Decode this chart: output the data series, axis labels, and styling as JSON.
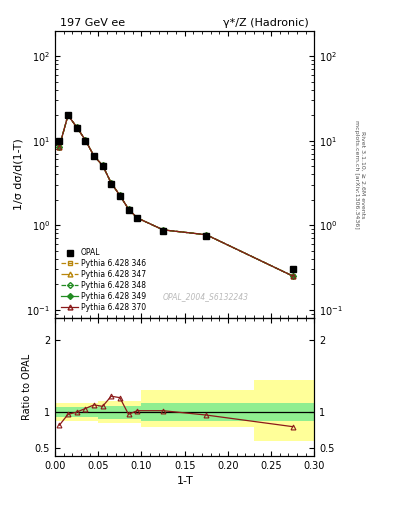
{
  "title_left": "197 GeV ee",
  "title_right": "γ*/Z (Hadronic)",
  "ylabel_main": "1/σ dσ/d(1-T)",
  "ylabel_ratio": "Ratio to OPAL",
  "xlabel": "1-T",
  "right_label": "Rivet 3.1.10, ≥ 2.6M events\nmcplots.cern.ch [arXiv:1306.3436]",
  "watermark": "OPAL_2004_S6132243",
  "opal_x": [
    0.005,
    0.015,
    0.025,
    0.035,
    0.045,
    0.055,
    0.065,
    0.075,
    0.085,
    0.095,
    0.125,
    0.175,
    0.275
  ],
  "opal_y": [
    10.0,
    20.0,
    14.0,
    10.0,
    6.5,
    5.0,
    3.1,
    2.2,
    1.5,
    1.2,
    0.85,
    0.75,
    0.3
  ],
  "py346_y": [
    8.5,
    20.0,
    14.5,
    10.2,
    6.6,
    5.1,
    3.15,
    2.25,
    1.55,
    1.22,
    0.88,
    0.77,
    0.25
  ],
  "py347_y": [
    8.5,
    20.0,
    14.5,
    10.2,
    6.6,
    5.1,
    3.15,
    2.25,
    1.55,
    1.22,
    0.88,
    0.77,
    0.25
  ],
  "py348_y": [
    8.5,
    20.0,
    14.5,
    10.2,
    6.6,
    5.1,
    3.15,
    2.25,
    1.55,
    1.22,
    0.88,
    0.77,
    0.25
  ],
  "py349_y": [
    8.5,
    20.0,
    14.5,
    10.2,
    6.6,
    5.1,
    3.15,
    2.25,
    1.55,
    1.22,
    0.88,
    0.77,
    0.25
  ],
  "py370_y": [
    8.5,
    20.0,
    14.5,
    10.2,
    6.6,
    5.1,
    3.15,
    2.25,
    1.55,
    1.22,
    0.88,
    0.77,
    0.25
  ],
  "ratio_x": [
    0.005,
    0.015,
    0.025,
    0.035,
    0.045,
    0.055,
    0.065,
    0.075,
    0.085,
    0.095,
    0.125,
    0.175,
    0.275
  ],
  "ratio_y": [
    0.82,
    0.97,
    1.0,
    1.05,
    1.1,
    1.08,
    1.22,
    1.2,
    0.97,
    1.02,
    1.02,
    0.96,
    0.8
  ],
  "band_edges": [
    0.0,
    0.01,
    0.02,
    0.05,
    0.1,
    0.23,
    0.3
  ],
  "band_y_lo": [
    0.88,
    0.88,
    0.88,
    0.85,
    0.8,
    0.6,
    0.6
  ],
  "band_y_hi": [
    1.12,
    1.12,
    1.12,
    1.15,
    1.3,
    1.45,
    1.45
  ],
  "band_g_lo": [
    0.93,
    0.93,
    0.93,
    0.91,
    0.88,
    0.88,
    0.88
  ],
  "band_g_hi": [
    1.07,
    1.07,
    1.07,
    1.09,
    1.12,
    1.12,
    1.12
  ],
  "xlim": [
    0.0,
    0.3
  ],
  "ylim_main": [
    0.08,
    200
  ],
  "ylim_ratio": [
    0.4,
    2.3
  ],
  "color_346": "#b8860b",
  "color_347": "#b8860b",
  "color_348": "#228B22",
  "color_349": "#228B22",
  "color_370": "#8B1a1a",
  "color_yellow": "#ffff99",
  "color_green": "#90ee90",
  "legend_entries": [
    "OPAL",
    "Pythia 6.428 346",
    "Pythia 6.428 347",
    "Pythia 6.428 348",
    "Pythia 6.428 349",
    "Pythia 6.428 370"
  ]
}
